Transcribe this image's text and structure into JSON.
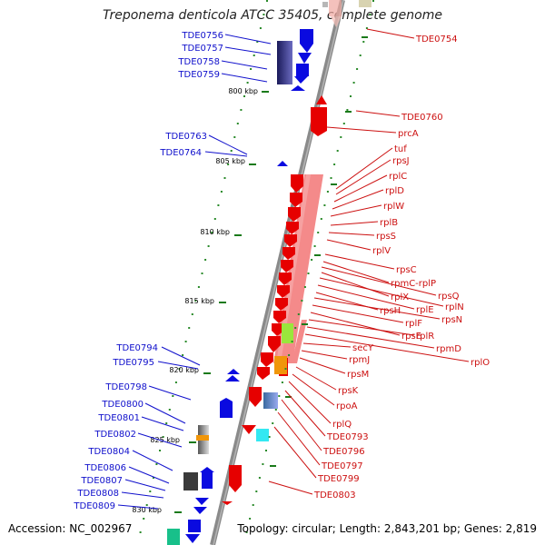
{
  "header": {
    "title": "Treponema denticola ATCC 35405, complete genome"
  },
  "footer": {
    "accession": "Accession: NC_002967",
    "topology": "Topology: circular; Length: 2,843,201 bp; Genes: 2,819"
  },
  "kbp_marks": [
    "800 kbp",
    "805 kbp",
    "810 kbp",
    "815 kbp",
    "820 kbp",
    "825 kbp",
    "830 kbp"
  ],
  "left_genes": [
    "TDE0756",
    "TDE0757",
    "TDE0758",
    "TDE0759",
    "TDE0763",
    "TDE0764",
    "TDE0794",
    "TDE0795",
    "TDE0798",
    "TDE0800",
    "TDE0801",
    "TDE0802",
    "TDE0804",
    "TDE0806",
    "TDE0807",
    "TDE0808",
    "TDE0809"
  ],
  "right_genes": [
    "TDE0754",
    "TDE0760",
    "prcA",
    "tuf",
    "rpsJ",
    "rplC",
    "rplD",
    "rplW",
    "rplB",
    "rpsS",
    "rplV",
    "rpsC",
    "rpmC-rplP",
    "rpsQ",
    "rplX",
    "rplN",
    "rplE",
    "rpsH",
    "rpsN",
    "rplF",
    "rpsE",
    "rplR",
    "rpmD",
    "rplO",
    "secY",
    "rpmJ",
    "rpsM",
    "rpsK",
    "rpoA",
    "rplQ",
    "TDE0793",
    "TDE0796",
    "TDE0797",
    "TDE0799",
    "TDE0803"
  ],
  "colors": {
    "forward": "#0a0ae0",
    "reverse": "#e60000",
    "backbone": "#888888",
    "tick": "#1a7a1a"
  }
}
